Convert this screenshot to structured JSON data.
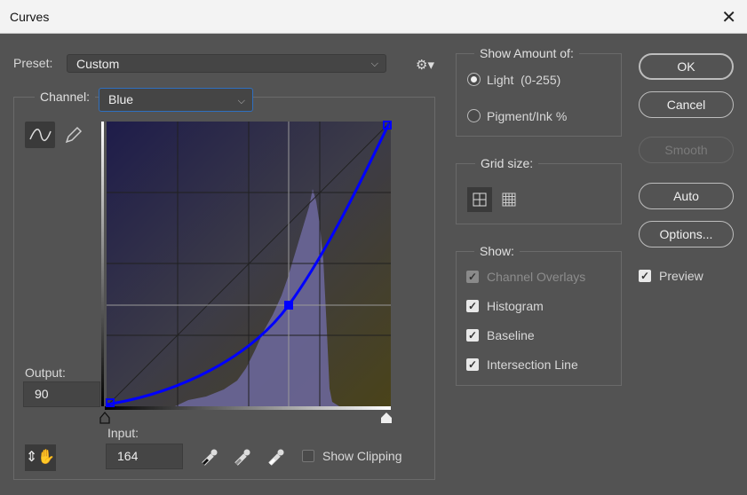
{
  "window": {
    "title": "Curves",
    "close_icon": "close-icon"
  },
  "preset": {
    "label": "Preset:",
    "value": "Custom",
    "gear_icon": "gear-icon"
  },
  "channel": {
    "label": "Channel:",
    "value": "Blue"
  },
  "tools": {
    "curve_icon": "curve-tool-icon",
    "pencil_icon": "pencil-icon",
    "target_icon": "targeted-adjustment-icon"
  },
  "output": {
    "label": "Output:",
    "value": "90"
  },
  "input": {
    "label": "Input:",
    "value": "164"
  },
  "eyedroppers": [
    "black-eyedropper-icon",
    "gray-eyedropper-icon",
    "white-eyedropper-icon"
  ],
  "show_clipping": {
    "label": "Show Clipping",
    "checked": false
  },
  "show_amount": {
    "title": "Show Amount of:",
    "options": [
      {
        "label": "Light  (0-255)",
        "selected": true
      },
      {
        "label": "Pigment/Ink %",
        "selected": false
      }
    ]
  },
  "grid_size": {
    "title": "Grid size:",
    "options": [
      "grid-4x4-icon",
      "grid-10x10-icon"
    ]
  },
  "show": {
    "title": "Show:",
    "items": [
      {
        "label": "Channel Overlays",
        "checked": true,
        "disabled": true
      },
      {
        "label": "Histogram",
        "checked": true
      },
      {
        "label": "Baseline",
        "checked": true
      },
      {
        "label": "Intersection Line",
        "checked": true
      }
    ]
  },
  "buttons": {
    "ok": "OK",
    "cancel": "Cancel",
    "smooth": "Smooth",
    "auto": "Auto",
    "options": "Options..."
  },
  "preview": {
    "label": "Preview",
    "checked": true
  },
  "curve": {
    "points": [
      [
        0,
        0
      ],
      [
        164,
        90
      ],
      [
        255,
        255
      ]
    ],
    "color": "#0000ff"
  }
}
